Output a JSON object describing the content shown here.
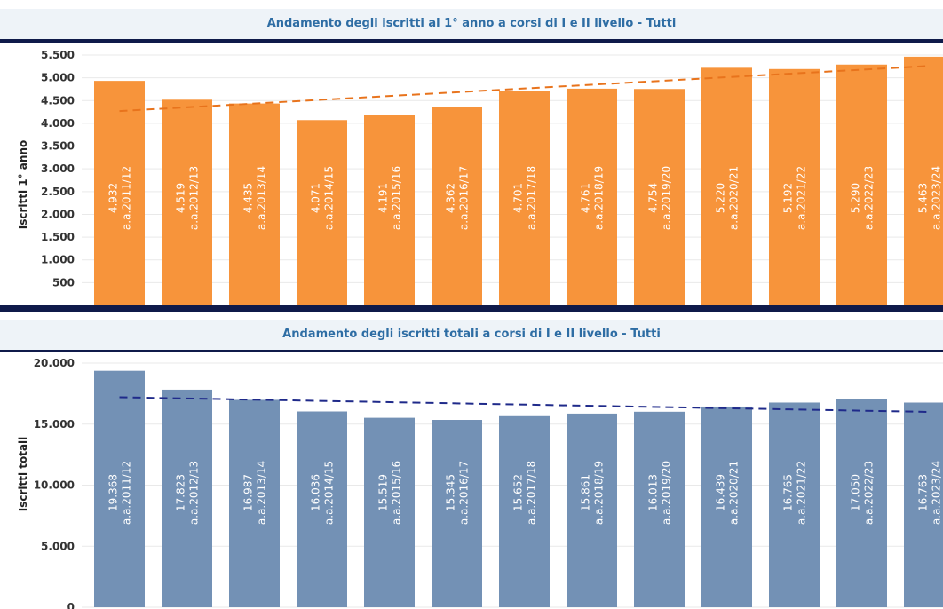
{
  "chart_data": [
    {
      "type": "bar",
      "title": "Andamento degli iscritti al 1° anno a corsi di I e II livello - Tutti",
      "ylabel": "Iscritti 1° anno",
      "categories": [
        "a.a.2011/12",
        "a.a.2012/13",
        "a.a.2013/14",
        "a.a.2014/15",
        "a.a.2015/16",
        "a.a.2016/17",
        "a.a.2017/18",
        "a.a.2018/19",
        "a.a.2019/20",
        "a.a.2020/21",
        "a.a.2021/22",
        "a.a.2022/23",
        "a.a.2023/24"
      ],
      "values": [
        4932,
        4519,
        4435,
        4071,
        4191,
        4362,
        4701,
        4761,
        4754,
        5220,
        5192,
        5290,
        5463
      ],
      "value_labels": [
        "4.932",
        "4.519",
        "4.435",
        "4.071",
        "4.191",
        "4.362",
        "4.701",
        "4.761",
        "4.754",
        "5.220",
        "5.192",
        "5.290",
        "5.463"
      ],
      "yticks": [
        "5.500",
        "5.000",
        "4.500",
        "4.000",
        "3.500",
        "3.000",
        "2.500",
        "2.000",
        "1.500",
        "1.000",
        "500"
      ],
      "ytick_values": [
        5500,
        5000,
        4500,
        4000,
        3500,
        3000,
        2500,
        2000,
        1500,
        1000,
        500
      ],
      "ylim": [
        0,
        5500
      ],
      "trend": [
        4270,
        5260
      ],
      "bar_color": "#f7943b",
      "trend_color": "#e8731c",
      "grid": true
    },
    {
      "type": "bar",
      "title": "Andamento degli iscritti totali a corsi di I e II livello - Tutti",
      "ylabel": "Iscritti totali",
      "categories": [
        "a.a.2011/12",
        "a.a.2012/13",
        "a.a.2013/14",
        "a.a.2014/15",
        "a.a.2015/16",
        "a.a.2016/17",
        "a.a.2017/18",
        "a.a.2018/19",
        "a.a.2019/20",
        "a.a.2020/21",
        "a.a.2021/22",
        "a.a.2022/23",
        "a.a.2023/24"
      ],
      "values": [
        19368,
        17823,
        16987,
        16036,
        15519,
        15345,
        15652,
        15861,
        16013,
        16439,
        16765,
        17050,
        16763
      ],
      "value_labels": [
        "19.368",
        "17.823",
        "16.987",
        "16.036",
        "15.519",
        "15.345",
        "15.652",
        "15.861",
        "16.013",
        "16.439",
        "16.765",
        "17.050",
        "16.763"
      ],
      "yticks": [
        "20.000",
        "15.000",
        "10.000",
        "5.000",
        "0"
      ],
      "ytick_values": [
        20000,
        15000,
        10000,
        5000,
        0
      ],
      "ylim": [
        0,
        20000
      ],
      "trend": [
        17200,
        16000
      ],
      "bar_color": "#7391b5",
      "trend_color": "#1f2a8a",
      "grid": true
    }
  ]
}
